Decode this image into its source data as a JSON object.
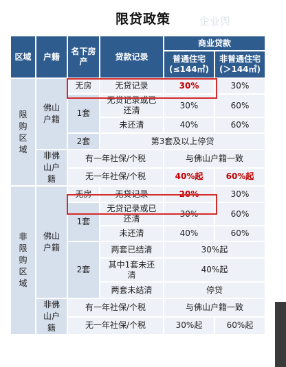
{
  "title": "限贷政策",
  "watermark": "企业舆",
  "colors": {
    "header": "#2f5c8f",
    "light": "#d6dfec",
    "lighter": "#eef2f8",
    "highlight": "#c00000"
  },
  "headers": {
    "region": "区域",
    "huji": "户籍",
    "houses": "名下房产",
    "record": "贷款记录",
    "commercial": "商业贷款",
    "normal": "普通住宅(≤144㎡)",
    "nonnormal": "非普通住宅(＞144㎡)"
  },
  "limit": {
    "region": "限购区域",
    "foshan": "佛山户籍",
    "none": "无房",
    "none_rec": "无贷记录",
    "none_n": "30%",
    "none_nn": "30%",
    "one": "1套",
    "one_a_rec": "无贷记录或已还清",
    "one_a_n": "30%",
    "one_a_nn": "60%",
    "one_b_rec": "未还清",
    "one_b_n": "40%",
    "one_b_nn": "60%",
    "two": "2套",
    "two_text": "第3套及以上停贷",
    "nonfoshan": "非佛山户籍",
    "nf_a": "有一年社保/个税",
    "nf_a_v": "与佛山户籍一致",
    "nf_b": "无一年社保/个税",
    "nf_b_n": "40%起",
    "nf_b_nn": "60%起"
  },
  "nonlimit": {
    "region": "非限购区域",
    "foshan": "佛山户籍",
    "none": "无房",
    "none_rec": "无贷记录",
    "none_n": "20%",
    "none_nn": "30%",
    "one": "1套",
    "one_a_rec": "无贷记录或已还清",
    "one_a_n": "30%",
    "one_a_nn": "60%",
    "one_b_rec": "未还清",
    "one_b_n": "40%",
    "one_b_nn": "60%",
    "two": "2套",
    "two_a_rec": "两套已结清",
    "two_a_v": "30%起",
    "two_b_rec": "其中1套未还清",
    "two_b_v": "40%起",
    "two_c_rec": "两套未结清",
    "two_c_v": "停贷",
    "nonfoshan": "非佛山户籍",
    "nf_a": "有一年社保/个税",
    "nf_a_v": "与佛山户籍一致",
    "nf_b": "无一年社保/个税",
    "nf_b_n": "30%起",
    "nf_b_nn": "60%起"
  }
}
